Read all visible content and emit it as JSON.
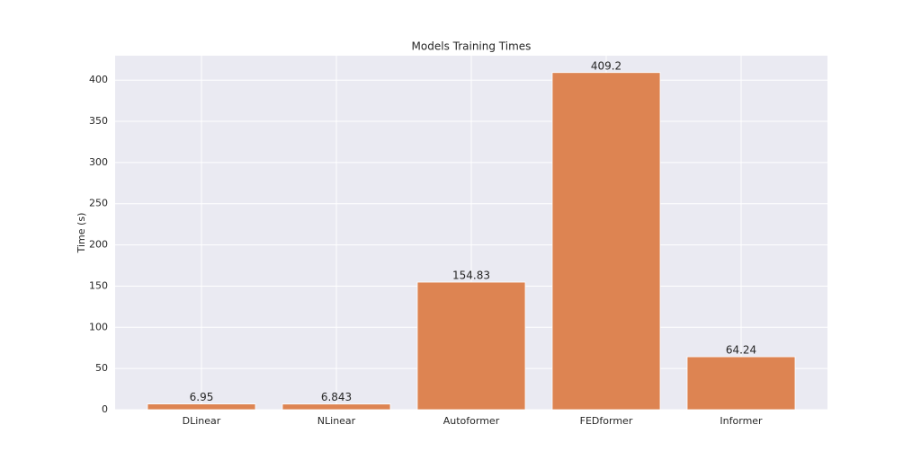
{
  "chart_data": {
    "type": "bar",
    "title": "Models Training Times",
    "y_label": "Time (s)",
    "categories": [
      "DLinear",
      "NLinear",
      "Autoformer",
      "FEDformer",
      "Informer"
    ],
    "values": [
      6.95,
      6.843,
      154.83,
      409.2,
      64.24
    ],
    "color": "#dd8452",
    "ylim": [
      0,
      429.66
    ],
    "yticks": [
      0,
      50,
      100,
      150,
      200,
      250,
      300,
      350,
      400
    ],
    "grid": true
  }
}
